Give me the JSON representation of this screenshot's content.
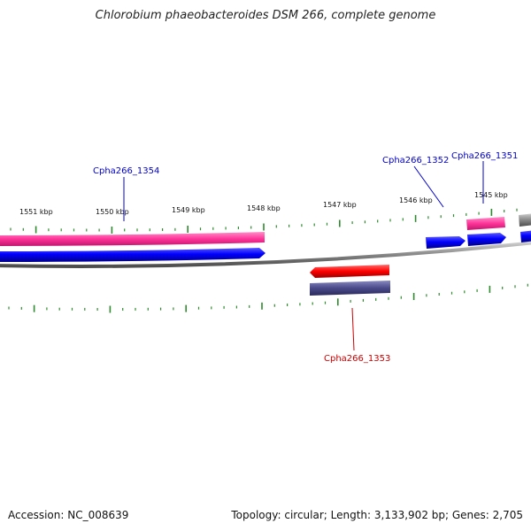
{
  "title": "Chlorobium phaeobacteroides DSM 266, complete genome",
  "footer": {
    "accession": "Accession: NC_008639",
    "summary": "Topology: circular; Length: 3,133,902 bp; Genes: 2,705"
  },
  "ruler": {
    "labels": [
      "1551 kbp",
      "1550 kbp",
      "1549 kbp",
      "1548 kbp",
      "1547 kbp",
      "1546 kbp",
      "1545 kbp"
    ],
    "color": "#2e8b2e"
  },
  "genes": [
    {
      "name": "Cpha266_1354",
      "color": "#0000cc"
    },
    {
      "name": "Cpha266_1353",
      "color": "#cc0000"
    },
    {
      "name": "Cpha266_1352",
      "color": "#0000cc"
    },
    {
      "name": "Cpha266_1351",
      "color": "#0000cc"
    }
  ],
  "colors": {
    "forward_cds": "#0000ff",
    "reverse_cds": "#ff0000",
    "forward_gene": "#ff3399",
    "reverse_gene": "#4a4a8a",
    "backbone": "#888888"
  }
}
